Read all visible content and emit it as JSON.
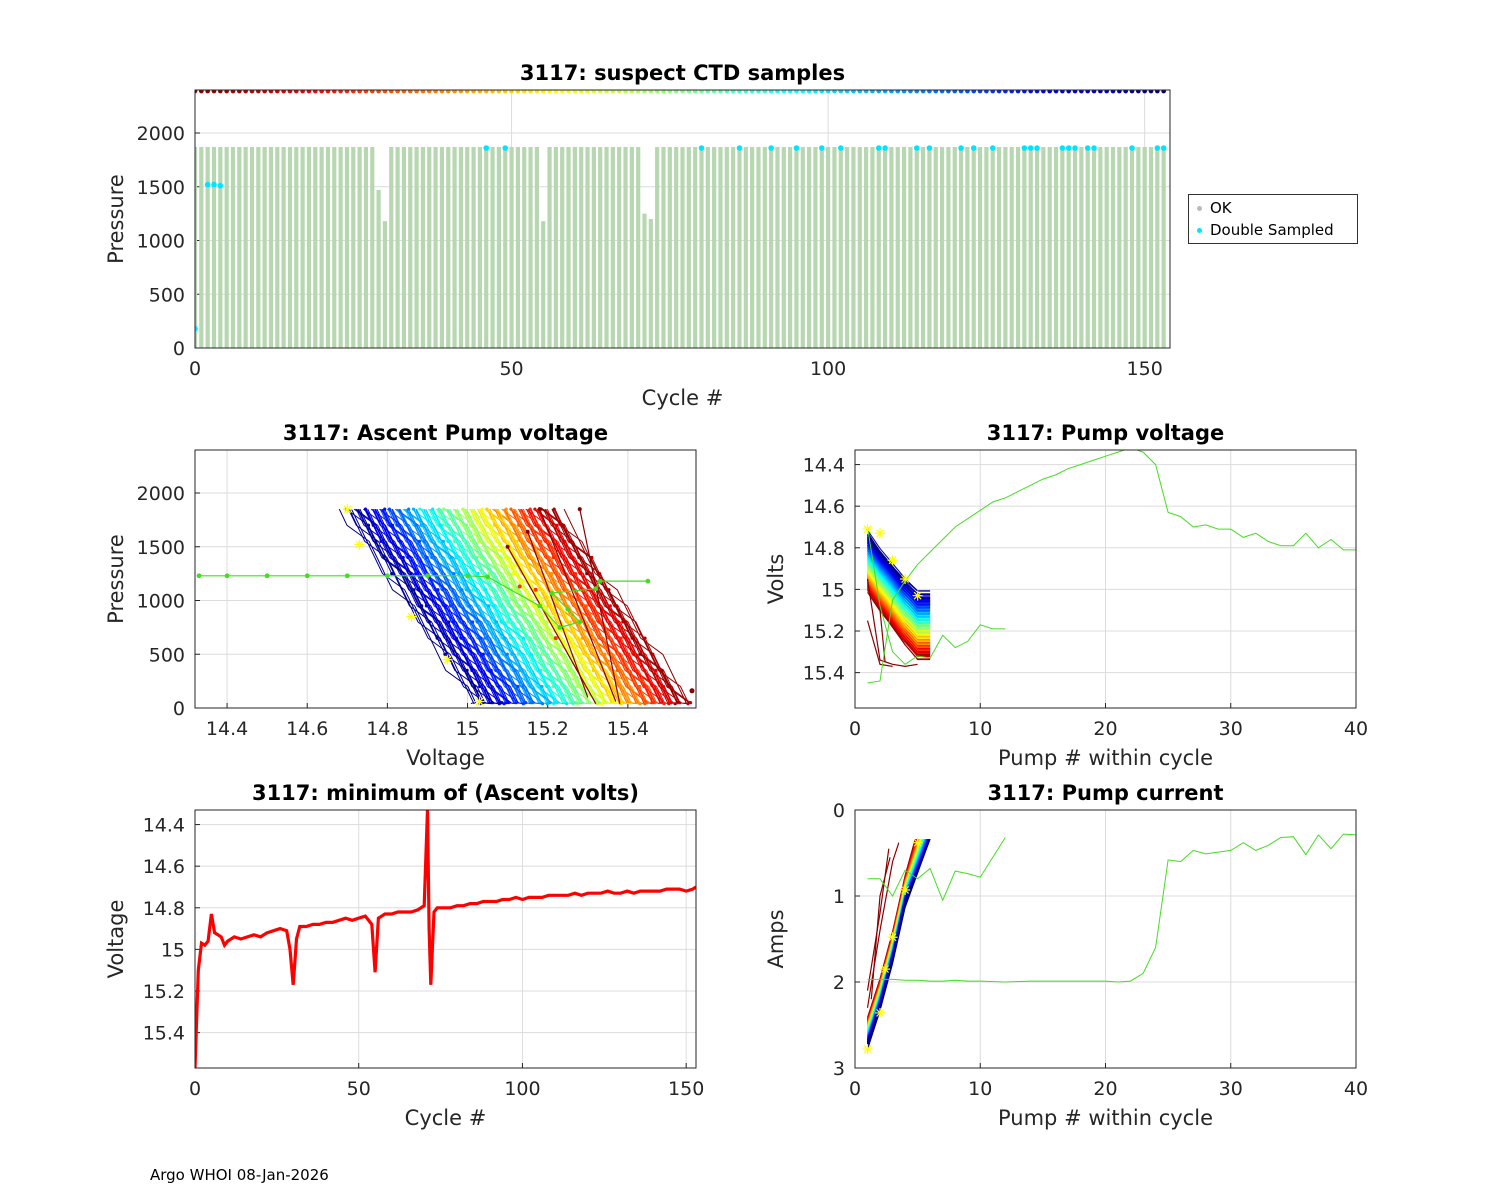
{
  "footer": "Argo WHOI 08-Jan-2026",
  "colors": {
    "ok": "#b7d7b0",
    "double": "#00e5ff",
    "grid": "#dcdcdc",
    "red": "#ff0000",
    "green": "#44dd22",
    "yellow": "#ffff00"
  },
  "legend": {
    "ok": "OK",
    "double": "Double Sampled"
  },
  "chart_data": [
    {
      "id": "ctd",
      "type": "scatter",
      "title": "3117: suspect CTD samples",
      "xlabel": "Cycle #",
      "ylabel": "Pressure",
      "xlim": [
        0,
        154
      ],
      "ylim": [
        2400,
        0
      ],
      "xticks": [
        0,
        50,
        100,
        150
      ],
      "yticks": [
        0,
        500,
        1000,
        1500,
        2000
      ],
      "ok_profile_max": 1870,
      "ok_profile_max_exceptions": {
        "29": 1470,
        "30": 1180,
        "55": 1180,
        "71": 1250,
        "72": 1200
      },
      "double_sampled_points": [
        [
          0,
          180
        ],
        [
          2,
          1520
        ],
        [
          3,
          1520
        ],
        [
          4,
          1510
        ],
        [
          46,
          1860
        ],
        [
          49,
          1860
        ],
        [
          80,
          1860
        ],
        [
          86,
          1860
        ],
        [
          91,
          1860
        ],
        [
          95,
          1860
        ],
        [
          99,
          1860
        ],
        [
          102,
          1860
        ],
        [
          108,
          1860
        ],
        [
          109,
          1860
        ],
        [
          114,
          1860
        ],
        [
          116,
          1860
        ],
        [
          121,
          1860
        ],
        [
          123,
          1860
        ],
        [
          126,
          1860
        ],
        [
          131,
          1860
        ],
        [
          132,
          1860
        ],
        [
          133,
          1860
        ],
        [
          137,
          1860
        ],
        [
          138,
          1860
        ],
        [
          139,
          1860
        ],
        [
          141,
          1860
        ],
        [
          142,
          1860
        ],
        [
          148,
          1860
        ],
        [
          152,
          1860
        ],
        [
          153,
          1860
        ]
      ],
      "cycle_marker_pressure": 2390
    },
    {
      "id": "ascent",
      "type": "line",
      "title": "3117: Ascent Pump voltage",
      "xlabel": "Voltage",
      "ylabel": "Pressure",
      "xlim": [
        14.32,
        15.57
      ],
      "ylim": [
        2400,
        0
      ],
      "xticks": [
        14.4,
        14.6,
        14.8,
        15,
        15.2,
        15.4
      ],
      "yticks": [
        0,
        500,
        1000,
        1500,
        2000
      ],
      "xticklabels": [
        "14.4",
        "14.6",
        "14.8",
        "15",
        "15.2",
        "15.4"
      ],
      "green_profile": [
        [
          14.33,
          1230
        ],
        [
          14.4,
          1230
        ],
        [
          14.5,
          1230
        ],
        [
          14.6,
          1230
        ],
        [
          14.7,
          1230
        ],
        [
          14.8,
          1230
        ],
        [
          14.9,
          1230
        ],
        [
          15.0,
          1230
        ],
        [
          15.05,
          1220
        ],
        [
          15.18,
          950
        ],
        [
          15.23,
          750
        ],
        [
          15.28,
          800
        ],
        [
          15.25,
          920
        ],
        [
          15.21,
          1070
        ],
        [
          15.32,
          1110
        ],
        [
          15.33,
          1180
        ],
        [
          15.45,
          1180
        ]
      ],
      "outlier": [
        15.56,
        160
      ]
    },
    {
      "id": "pumpv",
      "type": "line",
      "title": "3117: Pump voltage",
      "xlabel": "Pump # within cycle",
      "ylabel": "Volts",
      "xlim": [
        0,
        40
      ],
      "ylim": [
        14.33,
        15.57
      ],
      "xticks": [
        0,
        10,
        20,
        30,
        40
      ],
      "yticks": [
        14.4,
        14.6,
        14.8,
        15,
        15.2,
        15.4
      ],
      "yticklabels": [
        "14.4",
        "14.6",
        "14.8",
        "15",
        "15.2",
        "15.4"
      ],
      "green_long": [
        [
          1,
          15.45
        ],
        [
          2,
          15.44
        ],
        [
          3,
          15.05
        ],
        [
          4,
          14.96
        ],
        [
          5,
          14.88
        ],
        [
          6,
          14.82
        ],
        [
          7,
          14.76
        ],
        [
          8,
          14.7
        ],
        [
          9,
          14.66
        ],
        [
          10,
          14.62
        ],
        [
          11,
          14.58
        ],
        [
          12,
          14.56
        ],
        [
          13,
          14.53
        ],
        [
          14,
          14.5
        ],
        [
          15,
          14.47
        ],
        [
          16,
          14.45
        ],
        [
          17,
          14.42
        ],
        [
          18,
          14.4
        ],
        [
          19,
          14.38
        ],
        [
          20,
          14.36
        ],
        [
          21,
          14.34
        ],
        [
          22,
          14.32
        ],
        [
          23,
          14.34
        ],
        [
          24,
          14.4
        ],
        [
          25,
          14.63
        ],
        [
          26,
          14.65
        ],
        [
          27,
          14.7
        ],
        [
          28,
          14.69
        ],
        [
          29,
          14.71
        ],
        [
          30,
          14.71
        ],
        [
          31,
          14.75
        ],
        [
          32,
          14.73
        ],
        [
          33,
          14.77
        ],
        [
          34,
          14.79
        ],
        [
          35,
          14.79
        ],
        [
          36,
          14.73
        ],
        [
          37,
          14.8
        ],
        [
          38,
          14.76
        ],
        [
          39,
          14.81
        ],
        [
          40,
          14.81
        ]
      ],
      "green_short": [
        [
          1,
          14.7
        ],
        [
          2,
          15.08
        ],
        [
          3,
          15.3
        ],
        [
          4,
          15.36
        ],
        [
          5,
          15.32
        ],
        [
          6,
          15.33
        ],
        [
          7,
          15.22
        ],
        [
          8,
          15.28
        ],
        [
          9,
          15.25
        ],
        [
          10,
          15.17
        ],
        [
          11,
          15.19
        ],
        [
          12,
          15.19
        ]
      ]
    },
    {
      "id": "minv",
      "type": "line",
      "title": "3117: minimum of (Ascent volts)",
      "xlabel": "Cycle #",
      "ylabel": "Voltage",
      "xlim": [
        0,
        153
      ],
      "ylim": [
        14.33,
        15.57
      ],
      "xticks": [
        0,
        50,
        100,
        150
      ],
      "yticks": [
        14.4,
        14.6,
        14.8,
        15,
        15.2,
        15.4
      ],
      "yticklabels": [
        "14.4",
        "14.6",
        "14.8",
        "15",
        "15.2",
        "15.4"
      ],
      "series": [
        [
          0,
          15.57
        ],
        [
          1,
          15.1
        ],
        [
          2,
          14.97
        ],
        [
          3,
          14.98
        ],
        [
          4,
          14.96
        ],
        [
          5,
          14.83
        ],
        [
          6,
          14.92
        ],
        [
          7,
          14.93
        ],
        [
          8,
          14.94
        ],
        [
          9,
          14.98
        ],
        [
          10,
          14.96
        ],
        [
          12,
          14.94
        ],
        [
          14,
          14.95
        ],
        [
          16,
          14.94
        ],
        [
          18,
          14.93
        ],
        [
          20,
          14.94
        ],
        [
          22,
          14.92
        ],
        [
          24,
          14.91
        ],
        [
          26,
          14.9
        ],
        [
          28,
          14.91
        ],
        [
          29,
          15.0
        ],
        [
          30,
          15.17
        ],
        [
          31,
          14.95
        ],
        [
          32,
          14.89
        ],
        [
          34,
          14.89
        ],
        [
          36,
          14.88
        ],
        [
          38,
          14.88
        ],
        [
          40,
          14.87
        ],
        [
          42,
          14.87
        ],
        [
          44,
          14.86
        ],
        [
          46,
          14.85
        ],
        [
          48,
          14.86
        ],
        [
          50,
          14.85
        ],
        [
          52,
          14.84
        ],
        [
          54,
          14.88
        ],
        [
          55,
          15.11
        ],
        [
          56,
          14.85
        ],
        [
          58,
          14.83
        ],
        [
          60,
          14.83
        ],
        [
          62,
          14.82
        ],
        [
          64,
          14.82
        ],
        [
          66,
          14.82
        ],
        [
          68,
          14.81
        ],
        [
          70,
          14.79
        ],
        [
          71,
          14.33
        ],
        [
          71.5,
          14.9
        ],
        [
          72,
          15.17
        ],
        [
          73,
          14.82
        ],
        [
          74,
          14.8
        ],
        [
          76,
          14.8
        ],
        [
          78,
          14.8
        ],
        [
          80,
          14.79
        ],
        [
          82,
          14.79
        ],
        [
          84,
          14.78
        ],
        [
          86,
          14.78
        ],
        [
          88,
          14.77
        ],
        [
          90,
          14.77
        ],
        [
          92,
          14.77
        ],
        [
          94,
          14.76
        ],
        [
          96,
          14.76
        ],
        [
          98,
          14.75
        ],
        [
          100,
          14.76
        ],
        [
          102,
          14.75
        ],
        [
          104,
          14.75
        ],
        [
          106,
          14.75
        ],
        [
          108,
          14.74
        ],
        [
          110,
          14.74
        ],
        [
          112,
          14.74
        ],
        [
          114,
          14.74
        ],
        [
          116,
          14.73
        ],
        [
          118,
          14.74
        ],
        [
          120,
          14.73
        ],
        [
          122,
          14.73
        ],
        [
          124,
          14.73
        ],
        [
          126,
          14.72
        ],
        [
          128,
          14.73
        ],
        [
          130,
          14.73
        ],
        [
          132,
          14.72
        ],
        [
          134,
          14.73
        ],
        [
          136,
          14.72
        ],
        [
          138,
          14.72
        ],
        [
          140,
          14.72
        ],
        [
          142,
          14.72
        ],
        [
          144,
          14.71
        ],
        [
          146,
          14.71
        ],
        [
          148,
          14.71
        ],
        [
          150,
          14.72
        ],
        [
          152,
          14.71
        ],
        [
          153,
          14.7
        ]
      ]
    },
    {
      "id": "pumpc",
      "type": "line",
      "title": "3117: Pump current",
      "xlabel": "Pump # within cycle",
      "ylabel": "Amps",
      "xlim": [
        0,
        40
      ],
      "ylim": [
        0,
        3
      ],
      "xticks": [
        0,
        10,
        20,
        30,
        40
      ],
      "yticks": [
        0,
        1,
        2,
        3
      ],
      "green_long": [
        [
          1,
          1.97
        ],
        [
          2,
          1.97
        ],
        [
          3,
          1.97
        ],
        [
          4,
          1.98
        ],
        [
          5,
          1.98
        ],
        [
          6,
          1.99
        ],
        [
          7,
          1.99
        ],
        [
          8,
          1.98
        ],
        [
          9,
          1.99
        ],
        [
          10,
          1.99
        ],
        [
          12,
          2.0
        ],
        [
          14,
          1.99
        ],
        [
          16,
          1.99
        ],
        [
          18,
          1.99
        ],
        [
          20,
          1.99
        ],
        [
          21,
          2.0
        ],
        [
          22,
          1.99
        ],
        [
          23,
          1.9
        ],
        [
          24,
          1.6
        ],
        [
          25,
          0.58
        ],
        [
          26,
          0.6
        ],
        [
          27,
          0.47
        ],
        [
          28,
          0.51
        ],
        [
          29,
          0.49
        ],
        [
          30,
          0.47
        ],
        [
          31,
          0.38
        ],
        [
          32,
          0.47
        ],
        [
          33,
          0.41
        ],
        [
          34,
          0.32
        ],
        [
          35,
          0.31
        ],
        [
          36,
          0.52
        ],
        [
          37,
          0.29
        ],
        [
          38,
          0.45
        ],
        [
          39,
          0.28
        ],
        [
          40,
          0.29
        ]
      ],
      "green_short": [
        [
          1,
          0.8
        ],
        [
          2,
          0.8
        ],
        [
          3,
          1.0
        ],
        [
          4,
          0.7
        ],
        [
          5,
          0.8
        ],
        [
          6,
          0.68
        ],
        [
          7,
          1.05
        ],
        [
          8,
          0.71
        ],
        [
          9,
          0.74
        ],
        [
          10,
          0.78
        ],
        [
          12,
          0.32
        ]
      ]
    }
  ]
}
